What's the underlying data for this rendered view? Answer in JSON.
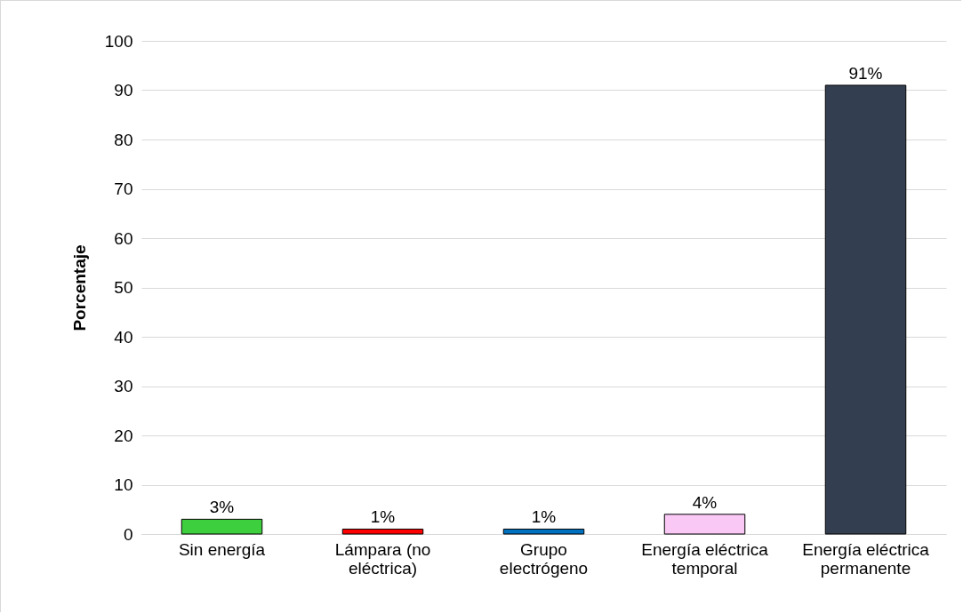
{
  "chart_data": {
    "type": "bar",
    "ylabel": "Porcentaje",
    "categories": [
      "Sin energía",
      "Lámpara (no eléctrica)",
      "Grupo electrógeno",
      "Energía eléctrica temporal",
      "Energía eléctrica permanente"
    ],
    "values": [
      3,
      1,
      1,
      4,
      91
    ],
    "colors": [
      "#3ecf3e",
      "#ff0000",
      "#0070c0",
      "#f9c8f5",
      "#333f50"
    ],
    "value_labels": [
      "3%",
      "1%",
      "1%",
      "4%",
      "91%"
    ],
    "ylim": [
      0,
      100
    ],
    "yticks": [
      0,
      10,
      20,
      30,
      40,
      50,
      60,
      70,
      80,
      90,
      100
    ],
    "grid": "y"
  }
}
